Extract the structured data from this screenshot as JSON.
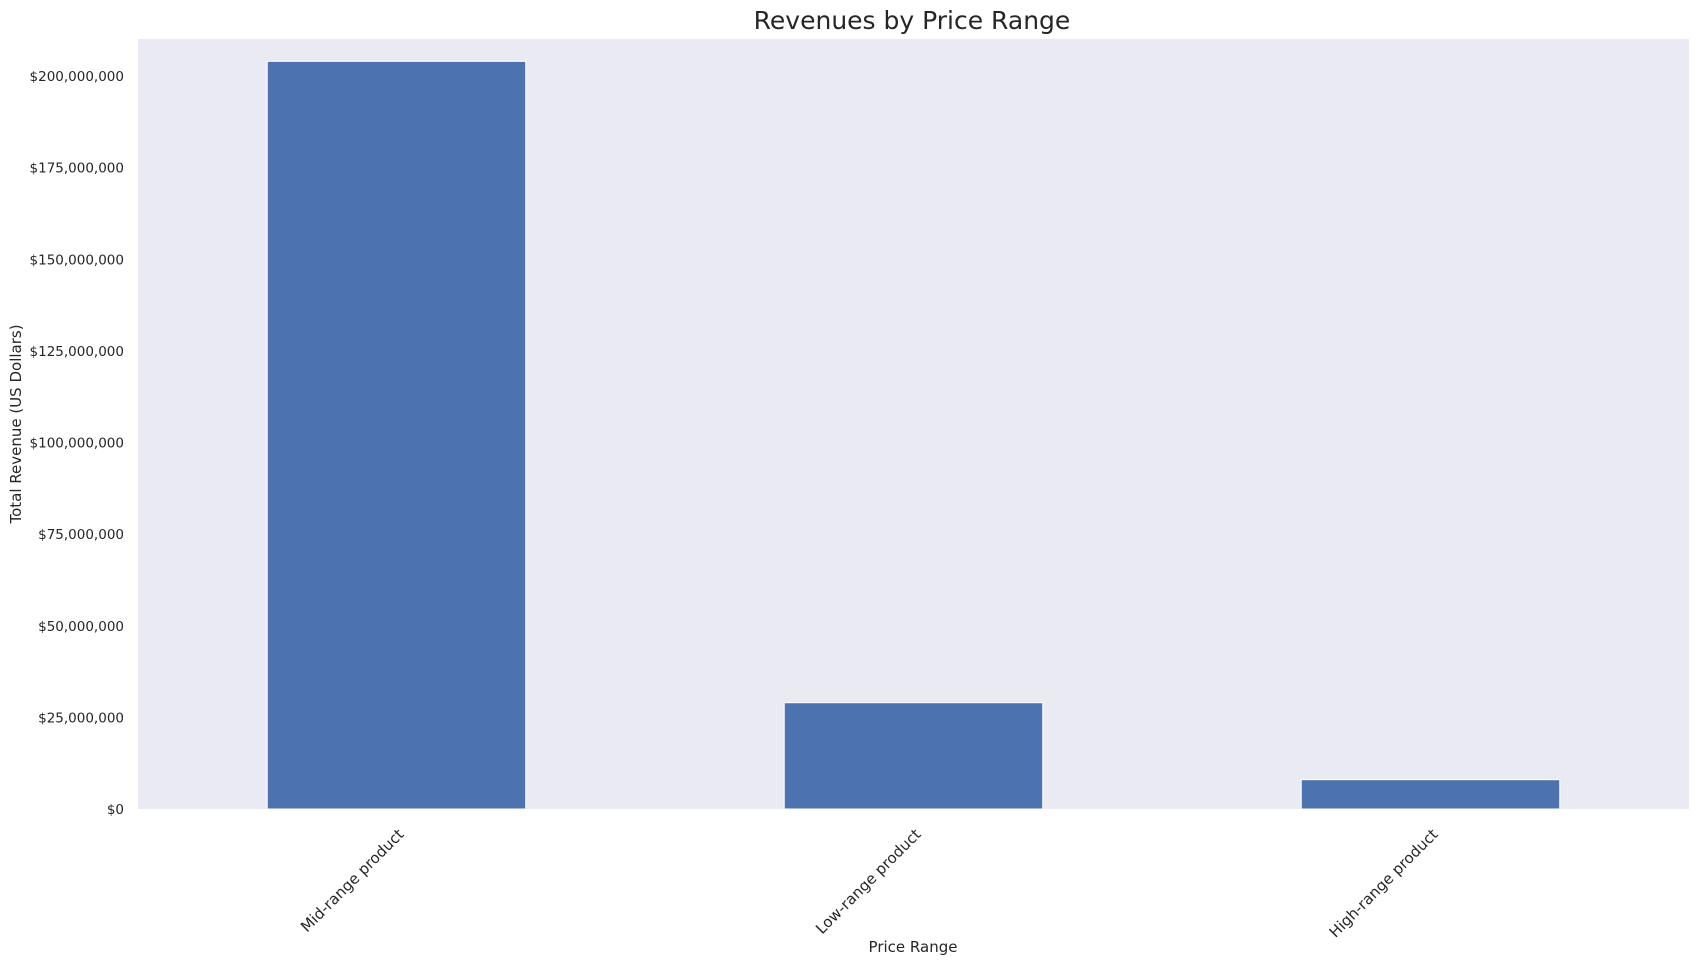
{
  "chart_data": {
    "type": "bar",
    "title": "Revenues by Price Range",
    "xlabel": "Price Range",
    "ylabel": "Total Revenue (US Dollars)",
    "categories": [
      "Mid-range product",
      "Low-range product",
      "High-range product"
    ],
    "values": [
      204000000,
      29000000,
      8000000
    ],
    "ylim": [
      0,
      210000000
    ],
    "yticks": [
      0,
      25000000,
      50000000,
      75000000,
      100000000,
      125000000,
      150000000,
      175000000,
      200000000
    ],
    "ytick_labels": [
      "$0",
      "$25,000,000",
      "$50,000,000",
      "$75,000,000",
      "$100,000,000",
      "$125,000,000",
      "$150,000,000",
      "$175,000,000",
      "$200,000,000"
    ],
    "grid": false,
    "legend": "none",
    "colors": {
      "bar": "#4c72b0",
      "plot_background": "#eaeaf2",
      "page_background": "#ffffff",
      "text": "#262626"
    }
  }
}
